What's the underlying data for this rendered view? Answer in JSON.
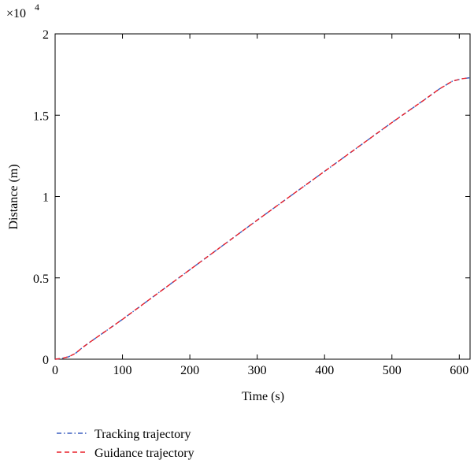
{
  "chart_data": {
    "type": "line",
    "xlabel": "Time (s)",
    "ylabel": "Distance (m)",
    "y_multiplier": "×10",
    "y_multiplier_exponent": "4",
    "x": [
      0,
      10,
      20,
      30,
      40,
      50,
      100,
      200,
      300,
      400,
      500,
      550,
      570,
      590,
      605,
      615
    ],
    "series": [
      {
        "name": "Tracking trajectory",
        "color": "#3b5fc0",
        "dash": "6,3,1.5,3",
        "values": [
          0,
          0.005,
          0.015,
          0.035,
          0.07,
          0.1,
          0.245,
          0.55,
          0.855,
          1.155,
          1.455,
          1.6,
          1.66,
          1.71,
          1.725,
          1.73
        ]
      },
      {
        "name": "Guidance trajectory",
        "color": "#e8202a",
        "dash": "6,4",
        "values": [
          0,
          0.005,
          0.015,
          0.035,
          0.07,
          0.1,
          0.245,
          0.55,
          0.855,
          1.155,
          1.455,
          1.6,
          1.66,
          1.71,
          1.725,
          1.73
        ]
      }
    ],
    "xlim": [
      0,
      616
    ],
    "ylim": [
      0,
      2
    ],
    "xticks": [
      0,
      100,
      200,
      300,
      400,
      500,
      600
    ],
    "yticks": [
      0,
      0.5,
      1,
      1.5,
      2
    ],
    "legend": "bottom"
  }
}
